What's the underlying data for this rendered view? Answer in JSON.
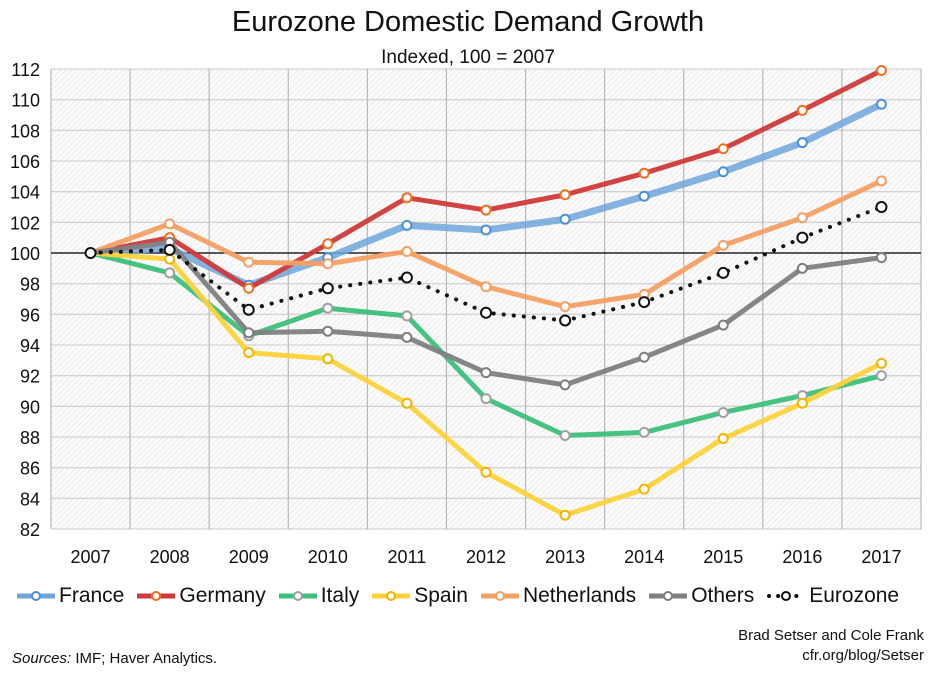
{
  "title": "Eurozone Domestic Demand Growth",
  "subtitle": "Indexed, 100 = 2007",
  "sources_label": "Sources:",
  "sources_text": "IMF; Haver Analytics.",
  "credit_line1": "Brad Setser and Cole Frank",
  "credit_line2": "cfr.org/blog/Setser",
  "chart_data": {
    "type": "line",
    "title": "Eurozone Domestic Demand Growth",
    "subtitle": "Indexed, 100 = 2007",
    "x": [
      "2007",
      "2008",
      "2009",
      "2010",
      "2011",
      "2012",
      "2013",
      "2014",
      "2015",
      "2016",
      "2017"
    ],
    "ylim": [
      82,
      112
    ],
    "yticks": [
      82,
      84,
      86,
      88,
      90,
      92,
      94,
      96,
      98,
      100,
      102,
      104,
      106,
      108,
      110,
      112
    ],
    "reference_line": 100,
    "grid": true,
    "legend": "bottom",
    "series": [
      {
        "name": "France",
        "color": "#6fa6dc",
        "marker": "#4a90d9",
        "values": [
          100,
          100.3,
          97.9,
          99.7,
          101.8,
          101.5,
          102.2,
          103.7,
          105.3,
          107.2,
          109.7
        ]
      },
      {
        "name": "Germany",
        "color": "#d0393a",
        "marker": "#f07020",
        "values": [
          100,
          101.0,
          97.7,
          100.6,
          103.6,
          102.8,
          103.8,
          105.2,
          106.8,
          109.3,
          111.9
        ]
      },
      {
        "name": "Italy",
        "color": "#3cbf7a",
        "marker": "#a0a0a0",
        "values": [
          100,
          98.7,
          94.6,
          96.4,
          95.9,
          90.5,
          88.1,
          88.3,
          89.6,
          90.7,
          92.0
        ]
      },
      {
        "name": "Spain",
        "color": "#fdd23a",
        "marker": "#f0b400",
        "values": [
          100,
          99.6,
          93.5,
          93.1,
          90.2,
          85.7,
          82.9,
          84.6,
          87.9,
          90.2,
          92.8
        ]
      },
      {
        "name": "Netherlands",
        "color": "#f4a064",
        "marker": "#f4a064",
        "values": [
          100,
          101.9,
          99.4,
          99.3,
          100.1,
          97.8,
          96.5,
          97.3,
          100.5,
          102.3,
          104.7
        ]
      },
      {
        "name": "Others",
        "color": "#7f7f7f",
        "marker": "#7f7f7f",
        "values": [
          100,
          100.7,
          94.8,
          94.9,
          94.5,
          92.2,
          91.4,
          93.2,
          95.3,
          99.0,
          99.7
        ]
      },
      {
        "name": "Eurozone",
        "color": "#111111",
        "marker": "#111111",
        "dotted": true,
        "values": [
          100,
          100.2,
          96.3,
          97.7,
          98.4,
          96.1,
          95.6,
          96.8,
          98.7,
          101.0,
          103.0
        ]
      }
    ]
  }
}
